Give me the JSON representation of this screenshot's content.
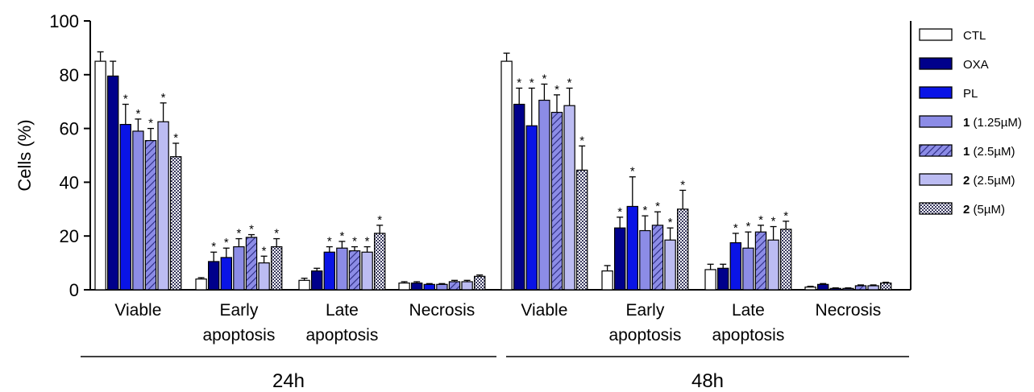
{
  "chart_data": {
    "type": "bar",
    "ylabel": "Cells (%)",
    "ylim": [
      0,
      100
    ],
    "yticks": [
      "0",
      "20",
      "40",
      "60",
      "80",
      "100"
    ],
    "groups": [
      {
        "label": "24h",
        "categories": [
          {
            "label_lines": [
              "Viable"
            ],
            "values": [
              85,
              79.5,
              61.5,
              59,
              55.5,
              62.5,
              49.5
            ],
            "errors": [
              3.5,
              5.5,
              7.5,
              4.5,
              4.5,
              7,
              5
            ],
            "significant": [
              false,
              false,
              true,
              true,
              true,
              true,
              true
            ]
          },
          {
            "label_lines": [
              "Early",
              "apoptosis"
            ],
            "values": [
              4,
              10.5,
              12,
              16,
              19.5,
              10,
              16
            ],
            "errors": [
              0.5,
              3.5,
              3.5,
              3,
              1,
              2.5,
              3
            ],
            "significant": [
              false,
              true,
              true,
              true,
              true,
              true,
              true
            ]
          },
          {
            "label_lines": [
              "Late",
              "apoptosis"
            ],
            "values": [
              3.5,
              7,
              14,
              15.5,
              14.5,
              14,
              21
            ],
            "errors": [
              0.8,
              1,
              2,
              2.5,
              1.5,
              2,
              3
            ],
            "significant": [
              false,
              false,
              true,
              true,
              true,
              true,
              true
            ]
          },
          {
            "label_lines": [
              "Necrosis"
            ],
            "values": [
              2.5,
              2.5,
              2,
              2,
              3,
              3,
              5
            ],
            "errors": [
              0.5,
              0.5,
              0.3,
              0.3,
              0.5,
              0.5,
              0.5
            ],
            "significant": [
              false,
              false,
              false,
              false,
              false,
              false,
              false
            ]
          }
        ]
      },
      {
        "label": "48h",
        "categories": [
          {
            "label_lines": [
              "Viable"
            ],
            "values": [
              85,
              69,
              61,
              70.5,
              66,
              68.5,
              44.5
            ],
            "errors": [
              3,
              6,
              14,
              6,
              6.5,
              6.5,
              9
            ],
            "significant": [
              false,
              true,
              true,
              true,
              true,
              true,
              true
            ]
          },
          {
            "label_lines": [
              "Early",
              "apoptosis"
            ],
            "values": [
              7,
              23,
              31,
              22,
              24,
              18.5,
              30
            ],
            "errors": [
              2,
              4,
              11,
              5.5,
              5,
              4.5,
              7
            ],
            "significant": [
              false,
              true,
              true,
              true,
              true,
              true,
              true
            ]
          },
          {
            "label_lines": [
              "Late",
              "apoptosis"
            ],
            "values": [
              7.5,
              8,
              17.5,
              15.5,
              21.5,
              18.5,
              22.5
            ],
            "errors": [
              2,
              1.5,
              3.5,
              6,
              2.5,
              5,
              3
            ],
            "significant": [
              false,
              false,
              true,
              true,
              true,
              true,
              true
            ]
          },
          {
            "label_lines": [
              "Necrosis"
            ],
            "values": [
              1,
              2,
              0.5,
              0.5,
              1.5,
              1.5,
              2.5
            ],
            "errors": [
              0.3,
              0.3,
              0.2,
              0.2,
              0.3,
              0.3,
              0.3
            ],
            "significant": [
              false,
              false,
              false,
              false,
              false,
              false,
              false
            ]
          }
        ]
      }
    ],
    "series": [
      {
        "name": "CTL",
        "name_bold": "",
        "name_rest": "CTL",
        "fill": "#ffffff",
        "pattern": "solid"
      },
      {
        "name": "OXA",
        "name_bold": "",
        "name_rest": "OXA",
        "fill": "#00008b",
        "pattern": "solid"
      },
      {
        "name": "PL",
        "name_bold": "",
        "name_rest": "PL",
        "fill": "#0a14e6",
        "pattern": "solid"
      },
      {
        "name": "1 (1.25µM)",
        "name_bold": "1",
        "name_rest": " (1.25µM)",
        "fill": "#8c8ce6",
        "pattern": "solid"
      },
      {
        "name": "1 (2.5µM)",
        "name_bold": "1",
        "name_rest": " (2.5µM)",
        "fill": "#8c8ce6",
        "pattern": "hatch"
      },
      {
        "name": "2 (2.5µM)",
        "name_bold": "2",
        "name_rest": " (2.5µM)",
        "fill": "#bcbcf2",
        "pattern": "solid"
      },
      {
        "name": "2 (5µM)",
        "name_bold": "2",
        "name_rest": " (5µM)",
        "fill": "#ffffff",
        "pattern": "checker"
      }
    ],
    "significance_marker": "*",
    "legend_position": "right",
    "grid": false
  }
}
